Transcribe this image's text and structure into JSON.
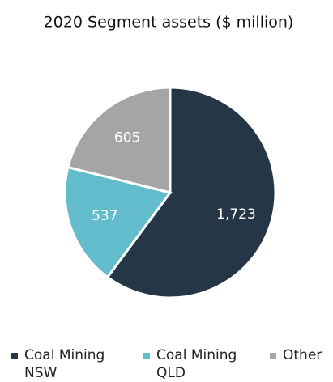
{
  "chart_data": {
    "type": "pie",
    "title": "2020 Segment assets ($ million)",
    "categories": [
      "Coal Mining NSW",
      "Coal Mining QLD",
      "Other"
    ],
    "values": [
      1723,
      537,
      605
    ],
    "value_labels": [
      "1,723",
      "537",
      "605"
    ],
    "colors": [
      "#253746",
      "#62bccc",
      "#a5a5a5"
    ],
    "legend": "bottom"
  }
}
